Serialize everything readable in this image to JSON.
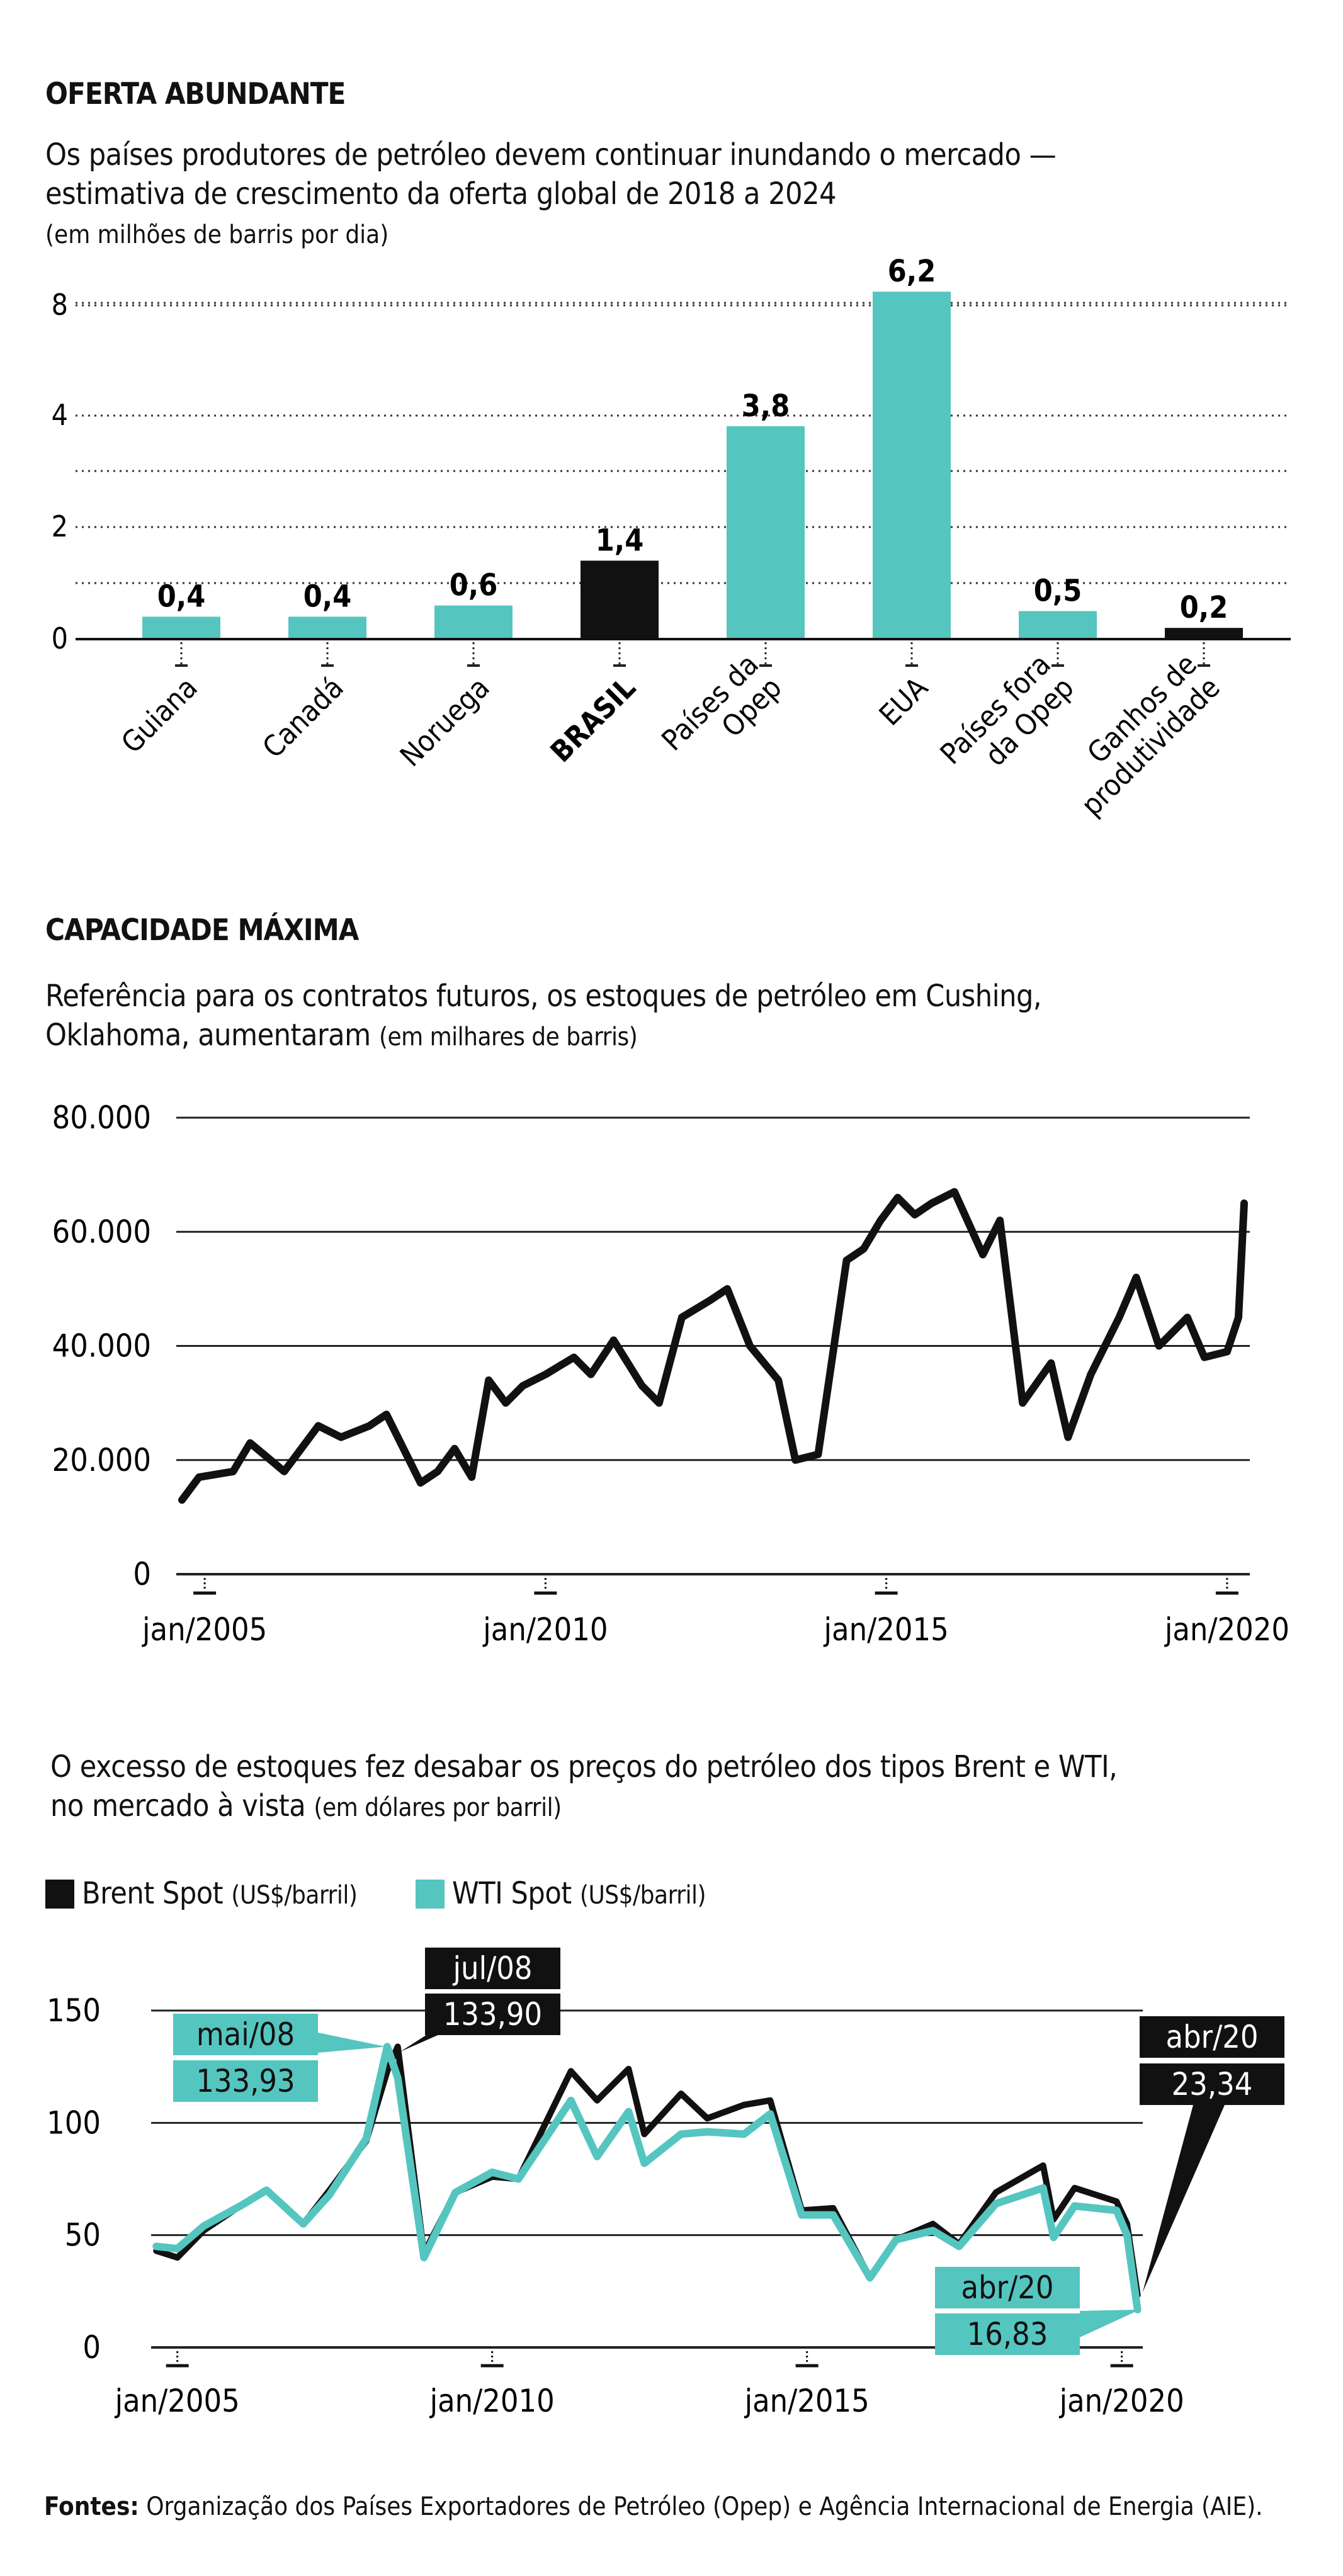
{
  "charts": {
    "supply": {
      "heading": "OFERTA ABUNDANTE",
      "subtitle_line1": "Os países produtores de petróleo devem continuar inundando o mercado —",
      "subtitle_line2": "estimativa de crescimento da oferta global de  2018 a 2024",
      "unit": "(em milhões de barris por dia)"
    },
    "cushing": {
      "heading": "CAPACIDADE MÁXIMA",
      "subtitle_line1": "Referência para os contratos futuros, os estoques de petróleo em Cushing,",
      "subtitle_line2_main": "Oklahoma, aumentaram",
      "subtitle_line2_unit": "(em milhares de barris)"
    },
    "prices": {
      "subtitle_line1": "O excesso de estoques fez desabar os preços do petróleo dos tipos Brent e WTI,",
      "subtitle_line2_main": "no mercado à vista",
      "subtitle_line2_unit": "(em dólares por barril)",
      "legend": {
        "brent_name": "Brent Spot",
        "brent_unit": "(US$/barril)",
        "wti_name": "WTI Spot",
        "wti_unit": "(US$/barril)"
      }
    }
  },
  "chart_data": [
    {
      "type": "bar",
      "title": "OFERTA ABUNDANTE",
      "ylabel": "",
      "categories": [
        [
          "Guiana"
        ],
        [
          "Canadá"
        ],
        [
          "Noruega"
        ],
        [
          "BRASIL"
        ],
        [
          "Países da",
          "Opep"
        ],
        [
          "EUA"
        ],
        [
          "Países fora",
          "da Opep"
        ],
        [
          "Ganhos de",
          "produtividade"
        ]
      ],
      "values": [
        0.4,
        0.4,
        0.6,
        1.4,
        3.8,
        6.2,
        0.5,
        0.2
      ],
      "value_labels": [
        "0,4",
        "0,4",
        "0,6",
        "1,4",
        "3,8",
        "6,2",
        "0,5",
        "0,2"
      ],
      "bar_colors": [
        "#55c5c0",
        "#55c5c0",
        "#55c5c0",
        "#111111",
        "#55c5c0",
        "#55c5c0",
        "#55c5c0",
        "#111111"
      ],
      "yticks": [
        0,
        2,
        4,
        8
      ],
      "ytick_labels": [
        "0",
        "2",
        "4",
        "8"
      ],
      "grid": "dotted",
      "axis_break": true
    },
    {
      "type": "line",
      "title": "CAPACIDADE MÁXIMA",
      "yticks": [
        0,
        20000,
        40000,
        60000,
        80000
      ],
      "ytick_labels": [
        "0",
        "20.000",
        "40.000",
        "60.000",
        "80.000"
      ],
      "ylim": [
        0,
        80000
      ],
      "xlim": [
        "2004-08",
        "2020-05"
      ],
      "xticks": [
        "2005-01",
        "2010-01",
        "2015-01",
        "2020-01"
      ],
      "xtick_labels": [
        "jan/2005",
        "jan/2010",
        "jan/2015",
        "jan/2020"
      ],
      "line_color": "#111111",
      "series": [
        {
          "x": [
            "2004-09",
            "2004-12",
            "2005-06",
            "2005-09",
            "2006-03",
            "2006-06",
            "2006-09",
            "2007-01",
            "2007-06",
            "2007-09",
            "2008-03",
            "2008-06",
            "2008-09",
            "2008-12",
            "2009-03",
            "2009-06",
            "2009-09",
            "2010-01",
            "2010-06",
            "2010-09",
            "2011-01",
            "2011-06",
            "2011-09",
            "2012-01",
            "2012-06",
            "2012-09",
            "2013-01",
            "2013-06",
            "2013-09",
            "2014-01",
            "2014-06",
            "2014-09",
            "2014-12",
            "2015-03",
            "2015-06",
            "2015-09",
            "2016-01",
            "2016-06",
            "2016-09",
            "2017-01",
            "2017-06",
            "2017-09",
            "2018-01",
            "2018-06",
            "2018-09",
            "2019-01",
            "2019-06",
            "2019-09",
            "2020-01",
            "2020-03",
            "2020-04"
          ],
          "y": [
            13000,
            17000,
            18000,
            23000,
            18000,
            22000,
            26000,
            24000,
            26000,
            28000,
            16000,
            18000,
            22000,
            17000,
            34000,
            30000,
            33000,
            35000,
            38000,
            35000,
            41000,
            33000,
            30000,
            45000,
            48000,
            50000,
            40000,
            34000,
            20000,
            21000,
            55000,
            57000,
            62000,
            66000,
            63000,
            65000,
            67000,
            56000,
            62000,
            30000,
            37000,
            24000,
            35000,
            45000,
            52000,
            40000,
            45000,
            38000,
            39000,
            45000,
            65000
          ]
        }
      ]
    },
    {
      "type": "line",
      "yticks": [
        0,
        50,
        100,
        150
      ],
      "ytick_labels": [
        "0",
        "50",
        "100",
        "150"
      ],
      "ylim": [
        0,
        150
      ],
      "xlim": [
        "2004-08",
        "2020-05"
      ],
      "xticks": [
        "2005-01",
        "2010-01",
        "2015-01",
        "2020-01"
      ],
      "xtick_labels": [
        "jan/2005",
        "jan/2010",
        "jan/2015",
        "jan/2020"
      ],
      "series": [
        {
          "name": "Brent Spot",
          "color": "#111111",
          "x": [
            "2004-09",
            "2005-01",
            "2005-06",
            "2006-01",
            "2006-06",
            "2007-01",
            "2007-06",
            "2008-01",
            "2008-05",
            "2008-07",
            "2008-12",
            "2009-06",
            "2010-01",
            "2010-06",
            "2011-04",
            "2011-09",
            "2012-03",
            "2012-06",
            "2013-01",
            "2013-06",
            "2014-01",
            "2014-06",
            "2014-12",
            "2015-06",
            "2016-01",
            "2016-06",
            "2017-01",
            "2017-06",
            "2018-01",
            "2018-10",
            "2018-12",
            "2019-04",
            "2019-12",
            "2020-02",
            "2020-04"
          ],
          "y": [
            43,
            40,
            52,
            63,
            70,
            55,
            70,
            92,
            123,
            133.9,
            42,
            69,
            76,
            75,
            123,
            110,
            124,
            95,
            113,
            102,
            108,
            110,
            61,
            62,
            31,
            48,
            55,
            46,
            69,
            81,
            57,
            71,
            65,
            55,
            23.34
          ]
        },
        {
          "name": "WTI Spot",
          "color": "#55c5c0",
          "x": [
            "2004-09",
            "2005-01",
            "2005-06",
            "2006-01",
            "2006-06",
            "2007-01",
            "2007-06",
            "2008-01",
            "2008-05",
            "2008-07",
            "2008-12",
            "2009-06",
            "2010-01",
            "2010-06",
            "2011-04",
            "2011-09",
            "2012-03",
            "2012-06",
            "2013-01",
            "2013-06",
            "2014-01",
            "2014-06",
            "2014-12",
            "2015-06",
            "2016-01",
            "2016-06",
            "2017-01",
            "2017-06",
            "2018-01",
            "2018-10",
            "2018-12",
            "2019-04",
            "2019-12",
            "2020-02",
            "2020-04"
          ],
          "y": [
            45,
            44,
            54,
            63,
            70,
            55,
            68,
            93,
            133.93,
            120,
            40,
            69,
            78,
            75,
            110,
            85,
            105,
            82,
            95,
            96,
            95,
            104,
            59,
            59,
            31,
            48,
            52,
            45,
            64,
            71,
            49,
            63,
            61,
            50,
            16.83
          ]
        }
      ],
      "annotations": [
        {
          "series": "WTI Spot",
          "date": "mai/08",
          "value": "133,93"
        },
        {
          "series": "Brent Spot",
          "date": "jul/08",
          "value": "133,90"
        },
        {
          "series": "Brent Spot",
          "date": "abr/20",
          "value": "23,34"
        },
        {
          "series": "WTI Spot",
          "date": "abr/20",
          "value": "16,83"
        }
      ]
    }
  ],
  "sources": {
    "label": "Fontes:",
    "text": "Organização dos Países Exportadores de Petróleo (Opep) e Agência Internacional de Energia (AIE)."
  }
}
